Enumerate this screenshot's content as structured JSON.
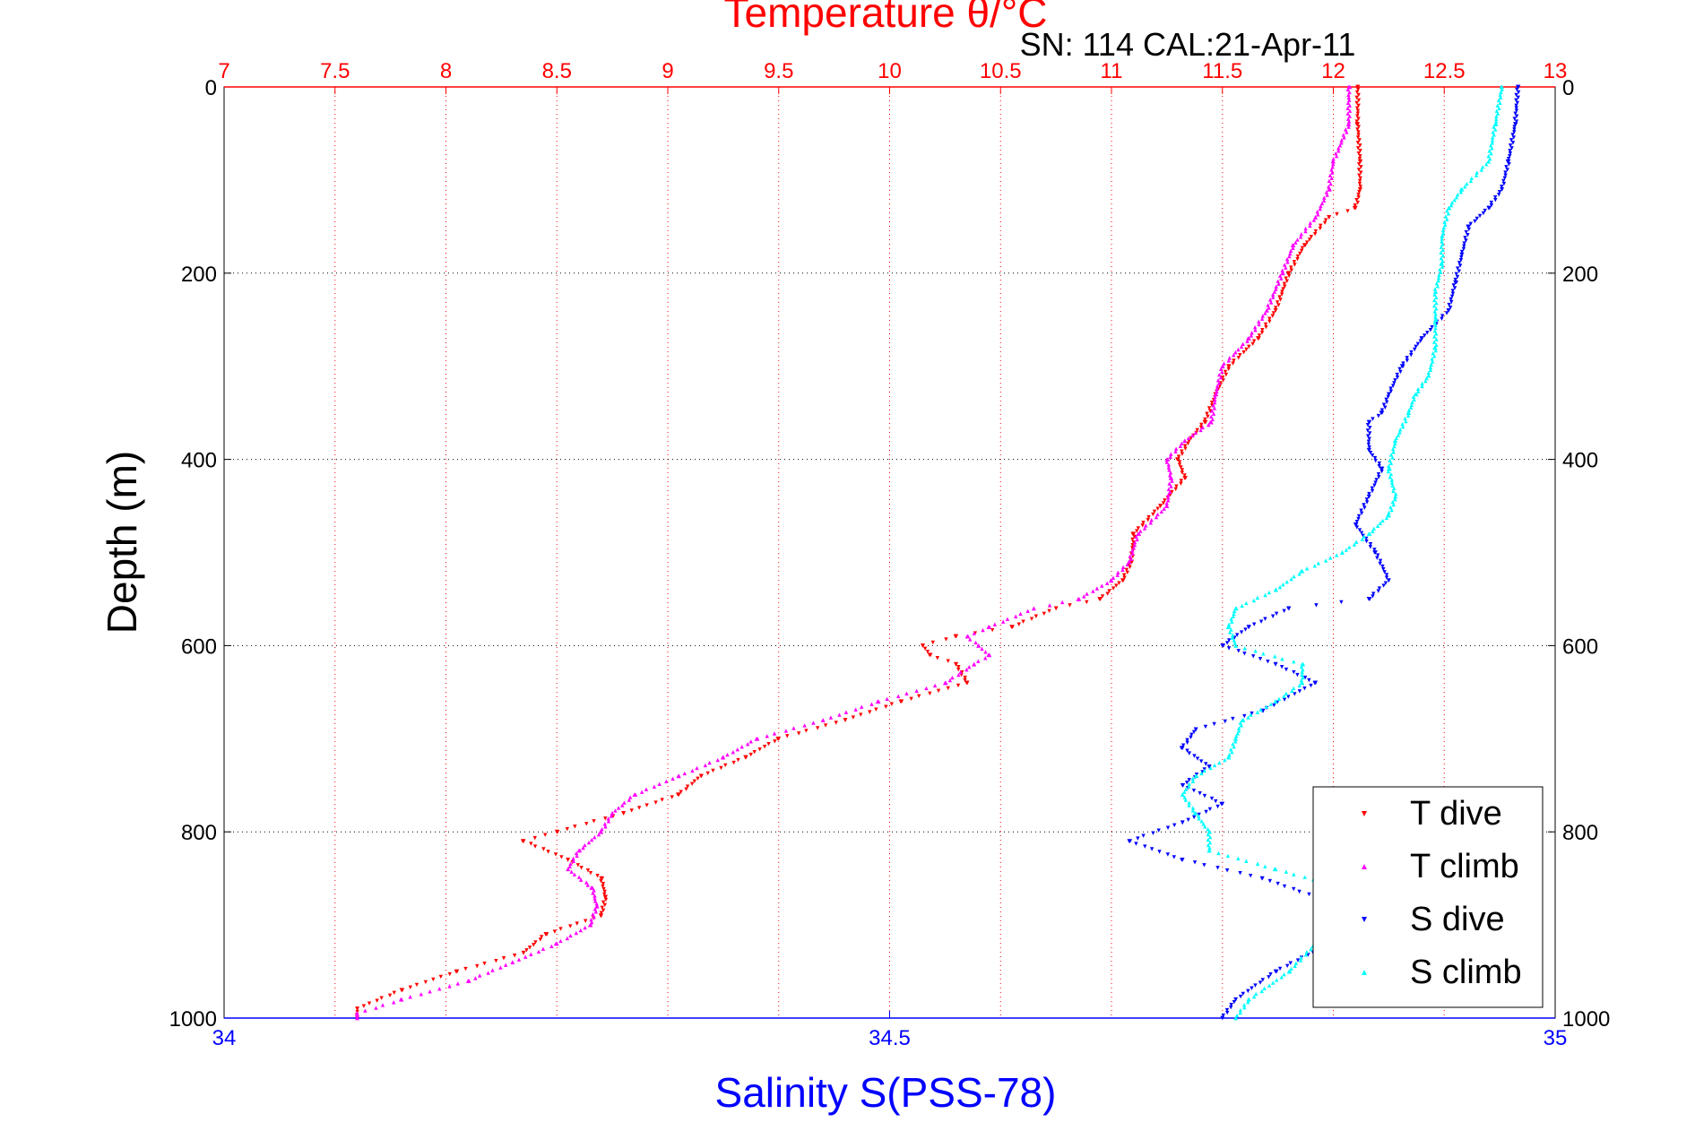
{
  "chart_data": {
    "type": "scatter",
    "title": "Temperature θ/°C",
    "subtitle": "SN: 114  CAL:21-Apr-11",
    "ylabel": "Depth (m)",
    "xlabel": "Salinity S(PSS-78)",
    "grid": true,
    "legend_position": "bottom-right",
    "depth_axis": {
      "range": [
        0,
        1000
      ],
      "reversed": true,
      "ticks": [
        0,
        200,
        400,
        600,
        800,
        1000
      ],
      "tick_labels": [
        "0",
        "200",
        "400",
        "600",
        "800",
        "1000"
      ]
    },
    "temperature_axis": {
      "position": "top",
      "range": [
        7,
        13
      ],
      "ticks": [
        7,
        7.5,
        8,
        8.5,
        9,
        9.5,
        10,
        10.5,
        11,
        11.5,
        12,
        12.5,
        13
      ],
      "tick_labels": [
        "7",
        "7.5",
        "8",
        "8.5",
        "9",
        "9.5",
        "10",
        "10.5",
        "11",
        "11.5",
        "12",
        "12.5",
        "13"
      ],
      "color": "#ff0000"
    },
    "salinity_axis": {
      "position": "bottom",
      "range": [
        34,
        35
      ],
      "ticks": [
        34,
        34.5,
        35
      ],
      "tick_labels": [
        "34",
        "34.5",
        "35"
      ],
      "color": "#0000ff"
    },
    "series": [
      {
        "name": "T dive",
        "axis": "temperature",
        "color": "#ff0000",
        "marker": "triangle-down",
        "points": [
          [
            12.11,
            0
          ],
          [
            12.11,
            40
          ],
          [
            12.12,
            80
          ],
          [
            12.12,
            110
          ],
          [
            12.1,
            130
          ],
          [
            11.98,
            140
          ],
          [
            11.87,
            170
          ],
          [
            11.8,
            200
          ],
          [
            11.74,
            240
          ],
          [
            11.66,
            270
          ],
          [
            11.53,
            300
          ],
          [
            11.47,
            330
          ],
          [
            11.42,
            360
          ],
          [
            11.35,
            380
          ],
          [
            11.3,
            400
          ],
          [
            11.33,
            420
          ],
          [
            11.22,
            450
          ],
          [
            11.1,
            480
          ],
          [
            11.09,
            510
          ],
          [
            11.05,
            530
          ],
          [
            10.95,
            550
          ],
          [
            10.75,
            560
          ],
          [
            10.55,
            580
          ],
          [
            10.3,
            590
          ],
          [
            10.15,
            600
          ],
          [
            10.18,
            610
          ],
          [
            10.3,
            620
          ],
          [
            10.35,
            640
          ],
          [
            10.05,
            660
          ],
          [
            9.8,
            680
          ],
          [
            9.5,
            700
          ],
          [
            9.35,
            720
          ],
          [
            9.15,
            740
          ],
          [
            9.05,
            760
          ],
          [
            8.8,
            780
          ],
          [
            8.5,
            800
          ],
          [
            8.35,
            810
          ],
          [
            8.55,
            830
          ],
          [
            8.7,
            850
          ],
          [
            8.72,
            870
          ],
          [
            8.7,
            890
          ],
          [
            8.45,
            910
          ],
          [
            8.35,
            930
          ],
          [
            8.05,
            950
          ],
          [
            7.8,
            970
          ],
          [
            7.6,
            990
          ],
          [
            7.6,
            1000
          ]
        ]
      },
      {
        "name": "T climb",
        "axis": "temperature",
        "color": "#ff00ff",
        "marker": "triangle-up",
        "points": [
          [
            12.07,
            0
          ],
          [
            12.07,
            40
          ],
          [
            12.0,
            80
          ],
          [
            11.98,
            110
          ],
          [
            11.92,
            140
          ],
          [
            11.82,
            170
          ],
          [
            11.77,
            200
          ],
          [
            11.7,
            240
          ],
          [
            11.62,
            270
          ],
          [
            11.5,
            300
          ],
          [
            11.47,
            330
          ],
          [
            11.45,
            360
          ],
          [
            11.33,
            380
          ],
          [
            11.25,
            400
          ],
          [
            11.27,
            420
          ],
          [
            11.25,
            450
          ],
          [
            11.12,
            480
          ],
          [
            11.08,
            510
          ],
          [
            11.0,
            530
          ],
          [
            10.85,
            550
          ],
          [
            10.65,
            560
          ],
          [
            10.45,
            580
          ],
          [
            10.35,
            590
          ],
          [
            10.4,
            600
          ],
          [
            10.45,
            610
          ],
          [
            10.38,
            620
          ],
          [
            10.25,
            640
          ],
          [
            9.95,
            660
          ],
          [
            9.7,
            680
          ],
          [
            9.4,
            700
          ],
          [
            9.25,
            720
          ],
          [
            9.05,
            740
          ],
          [
            8.85,
            760
          ],
          [
            8.75,
            780
          ],
          [
            8.7,
            800
          ],
          [
            8.6,
            820
          ],
          [
            8.55,
            840
          ],
          [
            8.66,
            860
          ],
          [
            8.68,
            880
          ],
          [
            8.65,
            900
          ],
          [
            8.5,
            920
          ],
          [
            8.3,
            940
          ],
          [
            8.1,
            960
          ],
          [
            7.8,
            980
          ],
          [
            7.6,
            995
          ],
          [
            7.6,
            1000
          ]
        ]
      },
      {
        "name": "S dive",
        "axis": "salinity",
        "color": "#0000ff",
        "marker": "triangle-down",
        "points": [
          [
            34.972,
            0
          ],
          [
            34.97,
            40
          ],
          [
            34.965,
            80
          ],
          [
            34.96,
            110
          ],
          [
            34.95,
            130
          ],
          [
            34.935,
            150
          ],
          [
            34.93,
            180
          ],
          [
            34.925,
            210
          ],
          [
            34.92,
            240
          ],
          [
            34.9,
            270
          ],
          [
            34.885,
            300
          ],
          [
            34.875,
            330
          ],
          [
            34.87,
            350
          ],
          [
            34.86,
            360
          ],
          [
            34.86,
            390
          ],
          [
            34.87,
            410
          ],
          [
            34.86,
            440
          ],
          [
            34.85,
            470
          ],
          [
            34.865,
            500
          ],
          [
            34.875,
            530
          ],
          [
            34.86,
            550
          ],
          [
            34.8,
            560
          ],
          [
            34.77,
            580
          ],
          [
            34.75,
            600
          ],
          [
            34.79,
            620
          ],
          [
            34.82,
            640
          ],
          [
            34.78,
            670
          ],
          [
            34.73,
            690
          ],
          [
            34.72,
            710
          ],
          [
            34.74,
            730
          ],
          [
            34.72,
            750
          ],
          [
            34.75,
            770
          ],
          [
            34.72,
            790
          ],
          [
            34.68,
            810
          ],
          [
            34.72,
            830
          ],
          [
            34.78,
            850
          ],
          [
            34.82,
            870
          ],
          [
            34.85,
            890
          ],
          [
            34.83,
            920
          ],
          [
            34.79,
            950
          ],
          [
            34.76,
            980
          ],
          [
            34.75,
            1000
          ]
        ]
      },
      {
        "name": "S climb",
        "axis": "salinity",
        "color": "#00ffff",
        "marker": "triangle-up",
        "points": [
          [
            34.96,
            0
          ],
          [
            34.955,
            40
          ],
          [
            34.95,
            80
          ],
          [
            34.93,
            110
          ],
          [
            34.92,
            130
          ],
          [
            34.915,
            160
          ],
          [
            34.915,
            190
          ],
          [
            34.91,
            220
          ],
          [
            34.91,
            250
          ],
          [
            34.91,
            280
          ],
          [
            34.905,
            310
          ],
          [
            34.895,
            330
          ],
          [
            34.89,
            350
          ],
          [
            34.88,
            380
          ],
          [
            34.875,
            410
          ],
          [
            34.88,
            440
          ],
          [
            34.875,
            460
          ],
          [
            34.86,
            480
          ],
          [
            34.84,
            500
          ],
          [
            34.81,
            520
          ],
          [
            34.79,
            540
          ],
          [
            34.76,
            560
          ],
          [
            34.755,
            580
          ],
          [
            34.76,
            600
          ],
          [
            34.81,
            620
          ],
          [
            34.81,
            640
          ],
          [
            34.79,
            660
          ],
          [
            34.765,
            680
          ],
          [
            34.76,
            700
          ],
          [
            34.755,
            720
          ],
          [
            34.73,
            740
          ],
          [
            34.72,
            760
          ],
          [
            34.73,
            780
          ],
          [
            34.74,
            800
          ],
          [
            34.74,
            820
          ],
          [
            34.79,
            840
          ],
          [
            34.84,
            860
          ],
          [
            34.85,
            880
          ],
          [
            34.83,
            900
          ],
          [
            34.82,
            920
          ],
          [
            34.8,
            950
          ],
          [
            34.77,
            980
          ],
          [
            34.76,
            1000
          ]
        ]
      }
    ]
  }
}
